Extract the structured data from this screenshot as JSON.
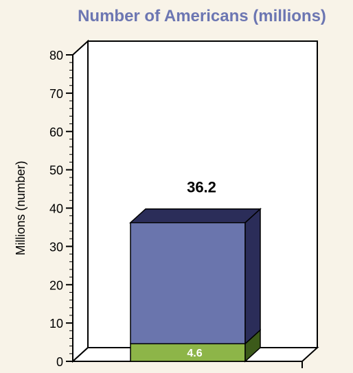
{
  "chart_data": {
    "type": "bar",
    "stacked": true,
    "three_d": true,
    "title": "Number of Americans (millions)",
    "xlabel": "",
    "ylabel": "Millions (number)",
    "ylim": [
      0,
      80
    ],
    "yticks": [
      0,
      10,
      20,
      30,
      40,
      50,
      60,
      70,
      80
    ],
    "minor_ticks_per_major": 5,
    "categories": [
      ""
    ],
    "series": [
      {
        "values": [
          4.6
        ],
        "color": "#8db548",
        "side_color": "#3c5a1a",
        "top_color": "#6f9a33",
        "data_labels": [
          "4.6"
        ],
        "label_color": "#ffffff"
      },
      {
        "values": [
          31.6
        ],
        "color": "#6a75ad",
        "side_color": "#2b2d59",
        "top_color": "#2b2d59"
      }
    ],
    "total_labels": [
      "36.2"
    ],
    "colors": {
      "background": "#f8f3e8",
      "plot_area": "#ffffff",
      "title": "#6c76b2",
      "axis": "#000000"
    },
    "grid": false,
    "legend": "none"
  }
}
